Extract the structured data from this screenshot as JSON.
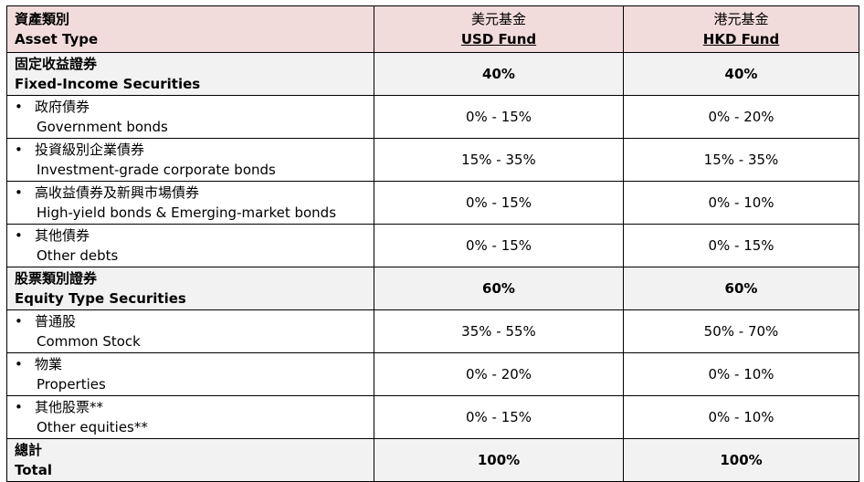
{
  "header": {
    "asset_zh": "資產類別",
    "asset_en": "Asset Type",
    "usd_zh": "美元基金",
    "usd_en": "USD Fund",
    "hkd_zh": "港元基金",
    "hkd_en": "HKD Fund"
  },
  "rows": [
    {
      "type": "section",
      "zh": "固定收益證券",
      "en": "Fixed-Income Securities",
      "usd": "40%",
      "hkd": "40%"
    },
    {
      "type": "item",
      "zh": "政府債券",
      "en": "Government bonds",
      "usd": "0% - 15%",
      "hkd": "0% - 20%"
    },
    {
      "type": "item",
      "zh": "投資級別企業債券",
      "en": "Investment-grade corporate bonds",
      "usd": "15% - 35%",
      "hkd": "15% - 35%"
    },
    {
      "type": "item",
      "zh": "高收益債券及新興市場債券",
      "en": "High-yield bonds & Emerging-market bonds",
      "usd": "0% - 15%",
      "hkd": "0% - 10%"
    },
    {
      "type": "item",
      "zh": "其他債券",
      "en": "Other debts",
      "usd": "0% - 15%",
      "hkd": "0% - 15%"
    },
    {
      "type": "section",
      "zh": "股票類別證券",
      "en": "Equity Type Securities",
      "usd": "60%",
      "hkd": "60%"
    },
    {
      "type": "item",
      "zh": "普通股",
      "en": "Common Stock",
      "usd": "35% - 55%",
      "hkd": "50% - 70%"
    },
    {
      "type": "item",
      "zh": "物業",
      "en": "Properties",
      "usd": "0% - 20%",
      "hkd": "0% - 10%"
    },
    {
      "type": "item",
      "zh": "其他股票**",
      "en": "Other equities**",
      "usd": "0% - 15%",
      "hkd": "0% - 10%"
    },
    {
      "type": "section",
      "zh": "總計",
      "en": "Total",
      "usd": "100%",
      "hkd": "100%"
    }
  ],
  "bullet": "•",
  "colors": {
    "header_bg": "#f2dcdb",
    "section_bg": "#f2f2f2"
  }
}
